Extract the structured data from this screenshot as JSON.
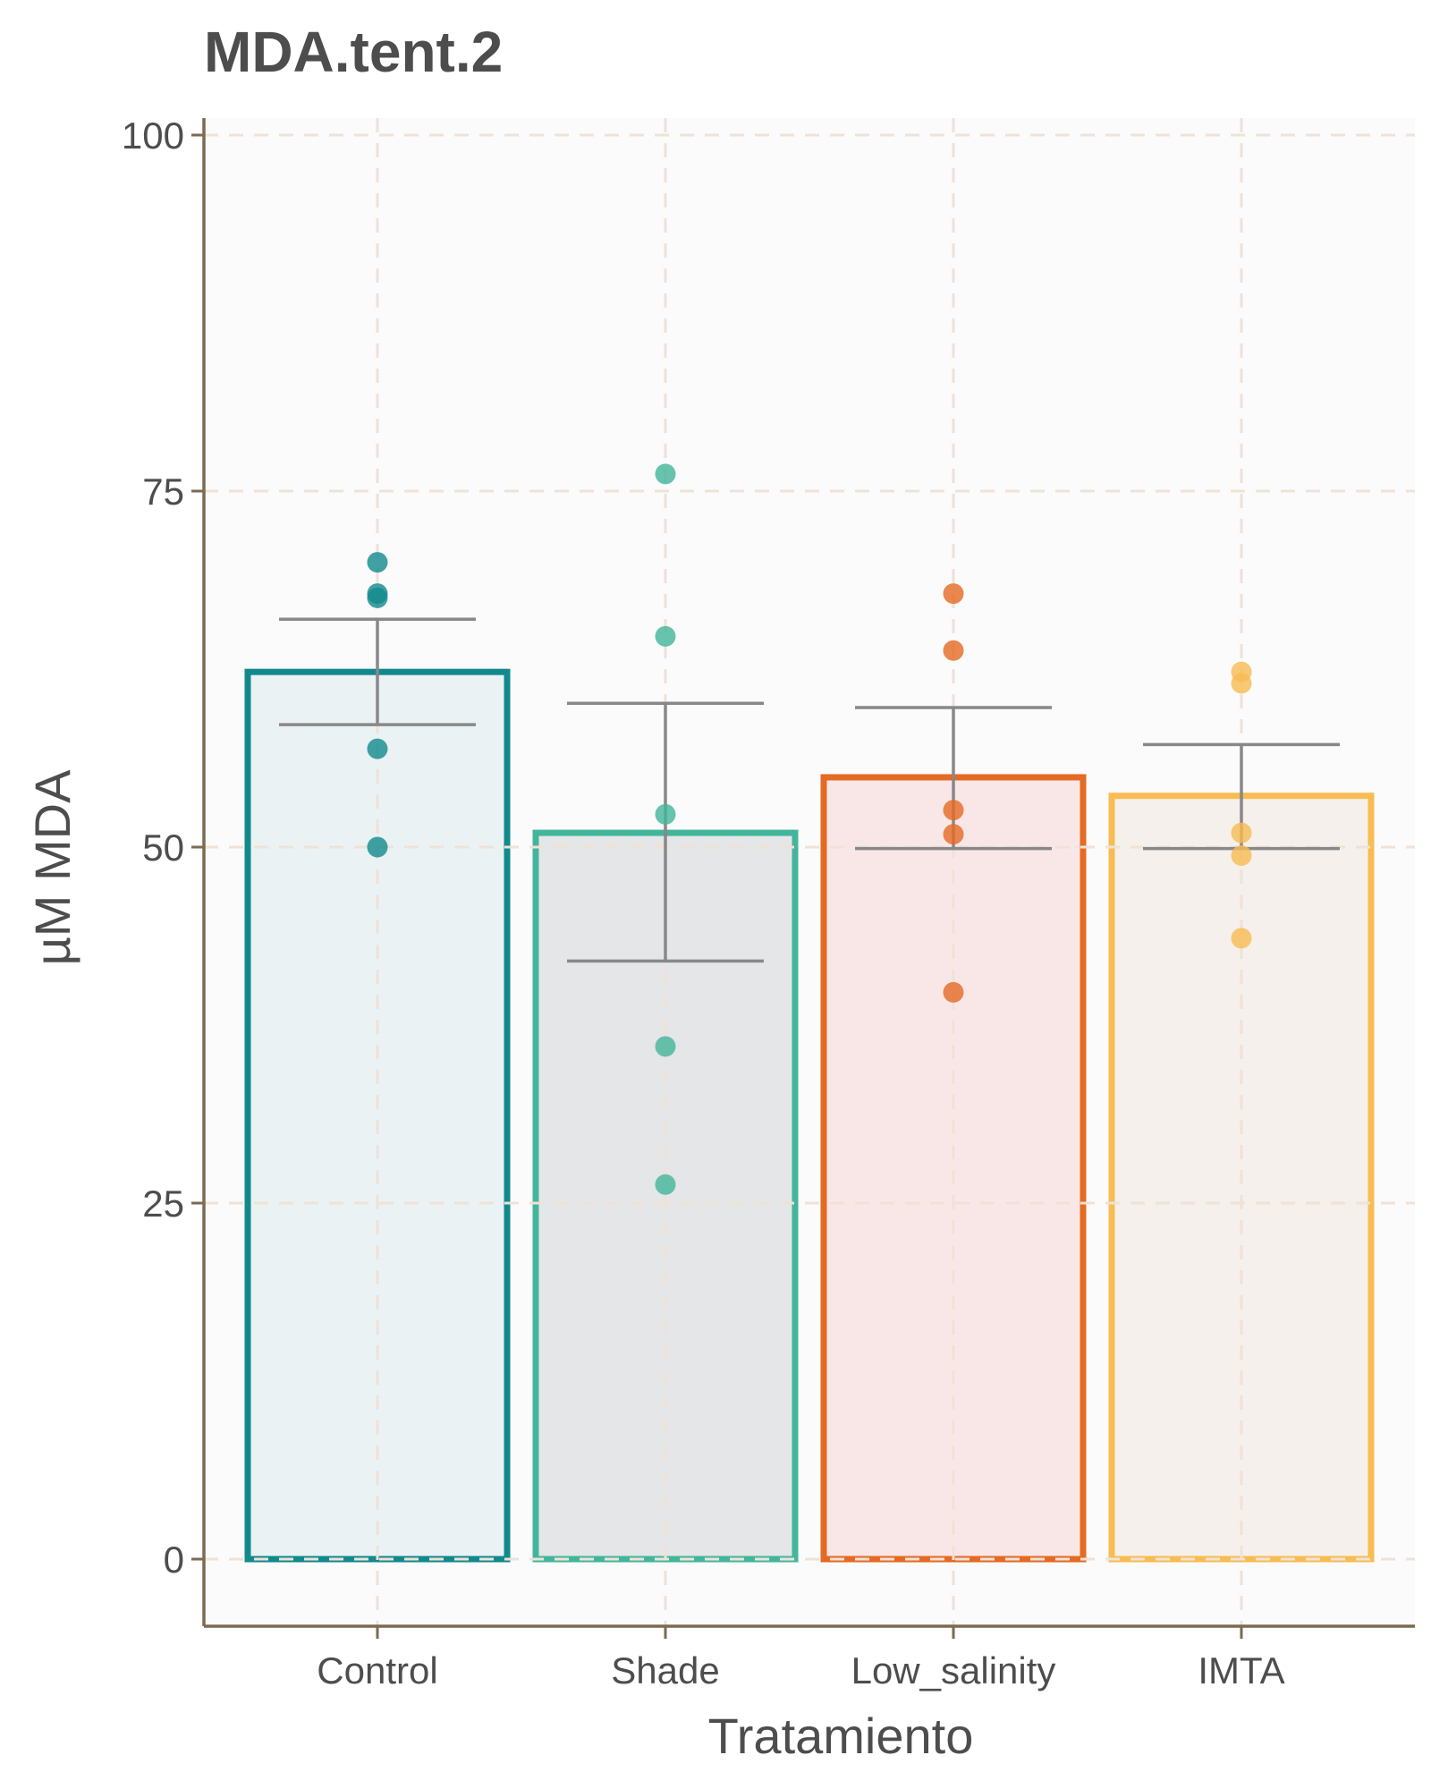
{
  "chart_data": {
    "type": "bar",
    "title": "MDA.tent.2",
    "xlabel": "Tratamiento",
    "ylabel": "µM MDA",
    "ylim": [
      -4.6,
      101
    ],
    "yticks": [
      0,
      25,
      50,
      75,
      100
    ],
    "categories": [
      "Control",
      "Shade",
      "Low_salinity",
      "IMTA"
    ],
    "means": [
      62.3,
      51.0,
      54.9,
      53.6
    ],
    "error_bars": [
      {
        "low": 58.6,
        "high": 66.0
      },
      {
        "low": 42.0,
        "high": 60.1
      },
      {
        "low": 49.9,
        "high": 59.8
      },
      {
        "low": 49.9,
        "high": 57.2
      }
    ],
    "points": [
      [
        70.0,
        67.8,
        67.5,
        56.9,
        50.0
      ],
      [
        76.2,
        64.8,
        52.3,
        36.0,
        26.3
      ],
      [
        67.8,
        63.8,
        52.6,
        50.9,
        39.8
      ],
      [
        62.3,
        61.5,
        51.0,
        49.4,
        43.6
      ]
    ],
    "colors": {
      "stroke": [
        "#11898d",
        "#43b59b",
        "#e56a23",
        "#f8bc52"
      ],
      "fill": [
        "#ebf2f4",
        "#e5e6e7",
        "#f9e7e8",
        "#f5f0ec"
      ],
      "panel_bg": "#fbfbfb",
      "grid": "#efe2d6",
      "axis": "#7d6a52",
      "errorbar": "#888888",
      "text": "#4d4d4d"
    },
    "grid": true,
    "grid_style": "dashed",
    "legend": "none"
  }
}
